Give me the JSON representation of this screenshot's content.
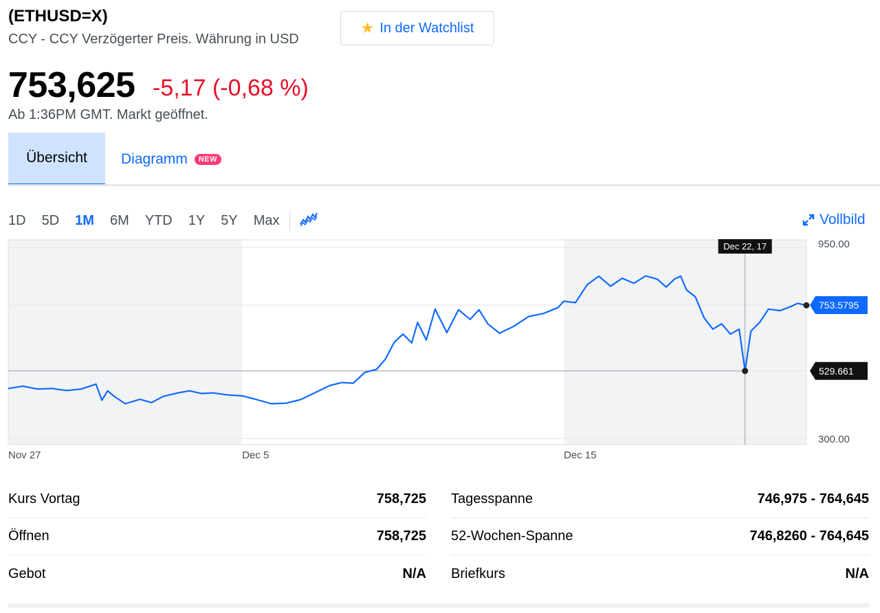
{
  "header": {
    "symbol": "(ETHUSD=X)",
    "subline": "CCY - CCY Verzögerter Preis. Währung in USD",
    "watchlist_label": "In der Watchlist",
    "watchlist_icon": "star-icon"
  },
  "quote": {
    "price": "753,625",
    "change": "-5,17 (-0,68 %)",
    "status": "Ab 1:36PM GMT. Markt geöffnet.",
    "change_color": "#eb0f29"
  },
  "tabs": {
    "overview": "Übersicht",
    "chart": "Diagramm",
    "chart_badge": "NEW"
  },
  "ranges": [
    "1D",
    "5D",
    "1M",
    "6M",
    "YTD",
    "1Y",
    "5Y",
    "Max"
  ],
  "active_range": "1M",
  "fullscreen_label": "Vollbild",
  "chart_data": {
    "type": "line",
    "y_ticks": [
      "950.00",
      "300.00"
    ],
    "ylim": [
      300,
      950
    ],
    "x_ticks": [
      "Nov 27",
      "Dec 5",
      "Dec 15"
    ],
    "x_tick_values": [
      0,
      8,
      19
    ],
    "xlim": [
      0,
      27.3
    ],
    "current_label": "753.5795",
    "current_value": 753.5795,
    "crosshair_value_label": "529.661",
    "crosshair_value": 529.661,
    "crosshair_date_label": "Dec 22, 17",
    "crosshair_x": 25.2,
    "line_color": "#0f69ff",
    "shaded_ranges": [
      [
        0,
        8
      ],
      [
        19,
        27.3
      ]
    ],
    "series": [
      {
        "x": [
          0,
          0.5,
          1,
          1.5,
          2,
          2.5,
          3,
          3.2,
          3.4,
          3.6,
          4,
          4.5,
          4.9,
          5.3,
          5.8,
          6.2,
          6.6,
          7,
          7.5,
          8,
          8.5,
          9,
          9.5,
          10,
          10.5,
          11,
          11.4,
          11.8,
          12.2,
          12.6,
          12.9,
          13.2,
          13.5,
          13.8,
          14,
          14.3,
          14.6,
          15,
          15.4,
          15.8,
          16.1,
          16.4,
          16.8,
          17.3,
          17.8,
          18.3,
          18.8,
          19,
          19.4,
          19.8,
          20.2,
          20.6,
          21,
          21.4,
          21.8,
          22.2,
          22.5,
          22.8,
          23,
          23.2,
          23.5,
          23.8,
          24.1,
          24.4,
          24.7,
          25,
          25.2,
          25.4,
          25.7,
          26,
          26.4,
          26.8,
          27,
          27.2,
          27.3
        ],
        "y": [
          470,
          478,
          468,
          470,
          463,
          468,
          485,
          430,
          462,
          445,
          418,
          433,
          422,
          443,
          455,
          462,
          453,
          455,
          448,
          445,
          432,
          418,
          420,
          432,
          456,
          480,
          490,
          488,
          525,
          535,
          570,
          627,
          655,
          625,
          695,
          635,
          740,
          660,
          738,
          705,
          738,
          690,
          658,
          682,
          715,
          725,
          745,
          767,
          762,
          823,
          852,
          818,
          845,
          828,
          853,
          842,
          815,
          843,
          852,
          805,
          782,
          710,
          672,
          690,
          655,
          672,
          529,
          665,
          695,
          740,
          735,
          750,
          760,
          755,
          753
        ]
      }
    ]
  },
  "stats": {
    "left": [
      {
        "label": "Kurs Vortag",
        "value": "758,725"
      },
      {
        "label": "Öffnen",
        "value": "758,725"
      },
      {
        "label": "Gebot",
        "value": "N/A"
      }
    ],
    "right": [
      {
        "label": "Tagesspanne",
        "value": "746,975 - 764,645"
      },
      {
        "label": "52-Wochen-Spanne",
        "value": "746,8260 - 764,645"
      },
      {
        "label": "Briefkurs",
        "value": "N/A"
      }
    ]
  }
}
